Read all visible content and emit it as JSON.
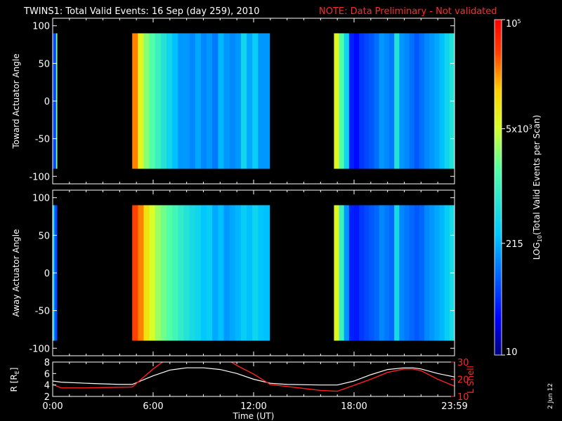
{
  "title": {
    "main": "TWINS1: Total Valid Events: 16 Sep (day 259), 2010",
    "note": "NOTE: Data Preliminary - Not validated"
  },
  "stamp": "2 Jun 12",
  "colors": {
    "note": "#ff2a2a",
    "background": "#000000",
    "axes": "#ffffff",
    "lshell": "#ff2020"
  },
  "chart_data": [
    {
      "type": "heatmap",
      "name": "toward",
      "ylabel": "Toward Actuator Angle",
      "ylim": [
        -110,
        110
      ],
      "y_ticks": [
        100,
        50,
        0,
        -50,
        -100
      ],
      "xlim": [
        0,
        24
      ],
      "data_y_range": [
        -90,
        90
      ],
      "segments": [
        {
          "start": 0.0,
          "end": 0.25,
          "level": [
            0.2,
            0.2,
            0.2,
            0.2,
            0.6
          ]
        },
        {
          "start": 4.75,
          "end": 12.95,
          "level": [
            0.85,
            0.7,
            0.6,
            0.55,
            0.5,
            0.45,
            0.4,
            0.35,
            0.3,
            0.3,
            0.28,
            0.32,
            0.28,
            0.3,
            0.26,
            0.34,
            0.3,
            0.28,
            0.3,
            0.4,
            0.32,
            0.38,
            0.3,
            0.3
          ]
        },
        {
          "start": 16.8,
          "end": 24.0,
          "level": [
            0.7,
            0.55,
            0.4,
            0.15,
            0.12,
            0.18,
            0.2,
            0.22,
            0.25,
            0.3,
            0.28,
            0.26,
            0.45,
            0.3,
            0.28,
            0.25,
            0.22,
            0.25,
            0.28,
            0.3,
            0.32,
            0.35,
            0.4,
            0.45
          ]
        }
      ]
    },
    {
      "type": "heatmap",
      "name": "away",
      "ylabel": "Away Actuator Angle",
      "ylim": [
        -110,
        110
      ],
      "y_ticks": [
        100,
        50,
        0,
        -50,
        -100
      ],
      "xlim": [
        0,
        24
      ],
      "data_y_range": [
        -90,
        90
      ],
      "segments": [
        {
          "start": 0.0,
          "end": 0.25,
          "level": [
            0.5,
            0.35,
            0.25,
            0.2,
            0.2
          ]
        },
        {
          "start": 4.75,
          "end": 12.95,
          "level": [
            0.9,
            0.85,
            0.75,
            0.68,
            0.62,
            0.58,
            0.55,
            0.52,
            0.48,
            0.45,
            0.42,
            0.4,
            0.36,
            0.38,
            0.32,
            0.35,
            0.3,
            0.32,
            0.34,
            0.38,
            0.35,
            0.4,
            0.36,
            0.35
          ]
        },
        {
          "start": 16.8,
          "end": 24.0,
          "level": [
            0.7,
            0.5,
            0.3,
            0.15,
            0.14,
            0.18,
            0.2,
            0.22,
            0.24,
            0.28,
            0.26,
            0.24,
            0.42,
            0.28,
            0.26,
            0.24,
            0.22,
            0.24,
            0.28,
            0.3,
            0.32,
            0.34,
            0.38,
            0.42
          ]
        }
      ]
    },
    {
      "type": "line",
      "name": "orbit",
      "xlabel": "Time (UT)",
      "x_ticks": [
        "0:00",
        "6:00",
        "12:00",
        "18:00",
        "23:59"
      ],
      "x_tick_values": [
        0,
        6,
        12,
        18,
        24
      ],
      "xlim": [
        0,
        24
      ],
      "ylabel_left": "R [R",
      "ylabel_left_sub": "E",
      "ylabel_left_close": "]",
      "ylim_left": [
        2,
        8
      ],
      "y_ticks_left": [
        8,
        6,
        4,
        2
      ],
      "ylabel_right": "L Shell",
      "ylim_right": [
        10,
        30
      ],
      "y_ticks_right": [
        30,
        20,
        10
      ],
      "series": [
        {
          "axis": "left",
          "x": [
            0,
            0.5,
            2,
            4,
            4.75,
            6,
            7,
            8,
            9,
            10,
            11,
            12,
            13,
            14,
            16,
            17,
            18,
            19,
            20,
            21,
            21.5,
            22,
            23,
            24
          ],
          "y": [
            4.7,
            4.5,
            4.3,
            4.1,
            4.1,
            5.6,
            6.6,
            7.0,
            7.0,
            6.7,
            6.0,
            5.0,
            4.3,
            4.1,
            4.0,
            4.0,
            4.7,
            5.8,
            6.7,
            7.0,
            7.0,
            6.8,
            6.0,
            5.4
          ]
        },
        {
          "axis": "right",
          "x": [
            0,
            0.5,
            2,
            4.75,
            6,
            6.7,
            10.5,
            11,
            12,
            13,
            16,
            17,
            18,
            19,
            20,
            21,
            21.5,
            22,
            23,
            24
          ],
          "y": [
            17,
            15,
            15,
            15.5,
            26,
            31,
            31,
            28,
            23,
            17,
            13.5,
            13,
            16.5,
            20,
            24,
            26,
            26,
            25,
            20,
            16
          ]
        }
      ]
    },
    {
      "type": "colorbar",
      "ylabel": "LOG",
      "ylabel_sub": "10",
      "ylabel_rest": "(Total Valid Events per Scan)",
      "ticks": [
        {
          "label": "10",
          "value": 10
        },
        {
          "label": "215",
          "value": 215
        },
        {
          "label": "5x10",
          "sup": "3",
          "value": 5000
        },
        {
          "label": "10",
          "sup": "5",
          "value": 100000
        }
      ],
      "range": [
        10,
        100000
      ],
      "scale": "log"
    }
  ]
}
